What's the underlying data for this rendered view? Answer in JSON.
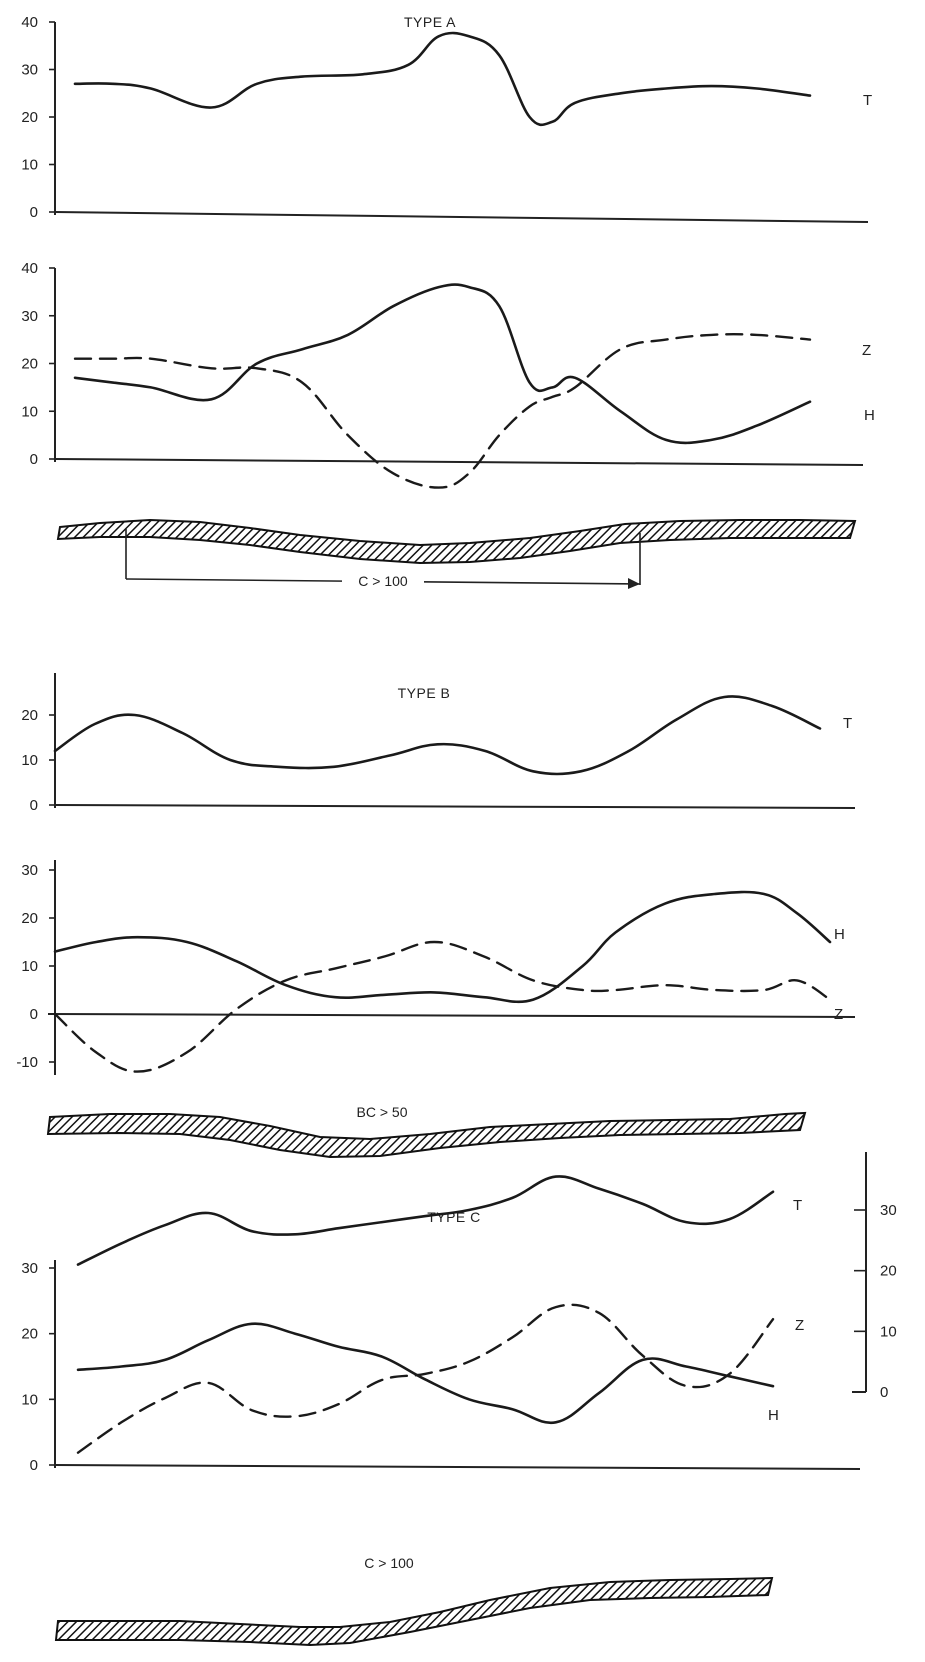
{
  "chart_data": [
    {
      "id": "typeA_top",
      "type": "line",
      "title": "TYPE A",
      "ylim": [
        0,
        40
      ],
      "yticks": [
        0,
        10,
        20,
        30,
        40
      ],
      "x": [
        0,
        5,
        10,
        18,
        24,
        30,
        38,
        44,
        48,
        52,
        56,
        60,
        63,
        66,
        72,
        78,
        84,
        90,
        97
      ],
      "series": [
        {
          "name": "T",
          "style": "solid",
          "values": [
            27,
            27,
            26,
            22,
            27,
            28.5,
            29,
            31,
            37,
            37,
            33,
            20,
            19,
            23,
            25,
            26,
            26.5,
            26,
            24.5
          ]
        }
      ]
    },
    {
      "id": "typeA_bottom",
      "type": "line",
      "ylim": [
        0,
        40
      ],
      "yticks": [
        0,
        10,
        20,
        30,
        40
      ],
      "x": [
        0,
        5,
        10,
        18,
        24,
        30,
        36,
        42,
        48,
        52,
        56,
        60,
        63,
        66,
        72,
        78,
        84,
        90,
        97
      ],
      "series": [
        {
          "name": "H",
          "style": "solid",
          "values": [
            17,
            16,
            15,
            12.5,
            20,
            23,
            26,
            32,
            36,
            36,
            32,
            16,
            15,
            17,
            10,
            4,
            4,
            7,
            12
          ]
        },
        {
          "name": "Z",
          "style": "dashed",
          "values": [
            21,
            21,
            21,
            19,
            19,
            16,
            5,
            -3,
            -6,
            -3,
            5,
            11,
            13,
            15,
            23,
            25,
            26,
            26,
            25
          ]
        }
      ],
      "ground": {
        "label": "C > 100"
      }
    },
    {
      "id": "typeB_top",
      "type": "line",
      "title": "TYPE B",
      "ylim": [
        0,
        20
      ],
      "yticks": [
        0,
        10,
        20
      ],
      "x": [
        0,
        5,
        10,
        16,
        22,
        28,
        35,
        42,
        48,
        54,
        60,
        66,
        72,
        78,
        84,
        90,
        96
      ],
      "series": [
        {
          "name": "T",
          "style": "solid",
          "values": [
            12,
            18,
            20,
            16,
            10,
            8.5,
            8.5,
            11,
            13.5,
            12,
            7.5,
            7.5,
            12,
            19,
            24,
            22,
            17
          ]
        }
      ]
    },
    {
      "id": "typeB_bottom",
      "type": "line",
      "ylim": [
        -10,
        30
      ],
      "yticks": [
        -10,
        0,
        10,
        20,
        30
      ],
      "x": [
        0,
        5,
        10,
        16,
        22,
        28,
        34,
        40,
        46,
        52,
        58,
        64,
        68,
        74,
        80,
        86,
        90,
        94
      ],
      "series": [
        {
          "name": "H",
          "style": "solid",
          "values": [
            13,
            15,
            16,
            15,
            11,
            6,
            3.5,
            4,
            4.5,
            3.5,
            3,
            10,
            17,
            23,
            25,
            25,
            21,
            15
          ]
        },
        {
          "name": "Z",
          "style": "dashed",
          "values": [
            0,
            -8,
            -12,
            -8,
            1,
            7,
            9.5,
            12,
            15,
            12,
            7,
            5,
            5,
            6,
            5,
            5,
            7,
            3
          ]
        }
      ],
      "ground": {
        "label": "BC > 50"
      }
    },
    {
      "id": "typeC",
      "type": "line",
      "title": "TYPE C",
      "ylim_left": [
        0,
        30
      ],
      "yticks_left": [
        0,
        10,
        20,
        30
      ],
      "ylim_right": [
        0,
        30
      ],
      "yticks_right": [
        0,
        10,
        20,
        30
      ],
      "x": [
        0,
        6,
        12,
        18,
        24,
        30,
        36,
        42,
        48,
        54,
        60,
        66,
        72,
        78,
        84,
        90,
        96
      ],
      "series": [
        {
          "name": "T",
          "style": "solid",
          "axis": "right",
          "values": [
            21,
            24.5,
            27.5,
            29.5,
            26.5,
            26,
            27,
            28,
            29,
            30,
            32,
            35.5,
            33.5,
            31,
            28,
            28.5,
            33
          ]
        },
        {
          "name": "Z",
          "style": "dashed",
          "axis": "right",
          "values": [
            -10,
            -5,
            -1,
            1.5,
            -3,
            -4,
            -2,
            2,
            3,
            5,
            9,
            14,
            13,
            6,
            1,
            3,
            12
          ]
        },
        {
          "name": "H",
          "style": "solid",
          "axis": "left",
          "values": [
            14.5,
            15,
            16,
            19,
            21.5,
            20,
            18,
            16.5,
            13,
            10,
            8.5,
            6.5,
            11,
            16,
            15,
            13.5,
            12
          ]
        }
      ],
      "ground": {
        "label": "C > 100"
      }
    }
  ]
}
